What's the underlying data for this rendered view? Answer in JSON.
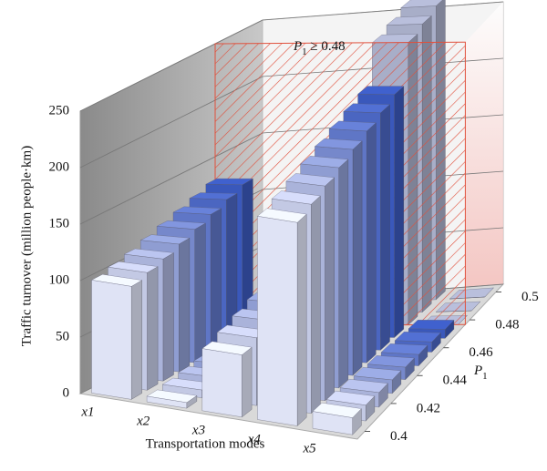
{
  "chart_data": {
    "type": "bar3d",
    "annotation": [
      "P",
      "1",
      " ≥ 0.48"
    ],
    "ylabel": "Traffic turnover (million people·km)",
    "xlabel": "Transportation modes",
    "zlabel": [
      "P",
      "1"
    ],
    "categories": [
      "x1",
      "x2",
      "x3",
      "x4",
      "x5"
    ],
    "z": [
      0.4,
      0.41,
      0.42,
      0.43,
      0.44,
      0.45,
      0.46,
      0.47,
      0.48,
      0.49,
      0.5
    ],
    "colors": [
      "#dfe3f5",
      "#c3c9e4",
      "#aab3da",
      "#8f9dd2",
      "#7688cb",
      "#5f76c6",
      "#4b66c1",
      "#3a58bb",
      "#a8aec8",
      "#a8aec8",
      "#a8aec8"
    ],
    "values": [
      [
        100,
        104,
        108,
        113,
        118,
        123,
        128,
        133,
        0,
        0,
        0
      ],
      [
        5,
        7,
        9,
        11,
        13,
        15,
        17,
        19,
        0,
        0,
        0
      ],
      [
        55,
        60,
        65,
        70,
        75,
        80,
        85,
        90,
        0,
        0,
        0
      ],
      [
        180,
        185,
        190,
        195,
        200,
        205,
        210,
        215,
        250,
        255,
        260
      ],
      [
        15,
        14,
        13,
        12,
        11,
        10,
        9,
        8,
        0,
        0,
        0
      ]
    ],
    "ylim": [
      0,
      250
    ],
    "yticks": [
      0,
      50,
      100,
      150,
      200,
      250
    ],
    "zlim": [
      0.4,
      0.5
    ],
    "zticks": [
      0.4,
      0.42,
      0.44,
      0.46,
      0.48,
      0.5
    ],
    "highlight_zlim": [
      0.48,
      0.5
    ],
    "highlight_color": "#e0503c",
    "grid": true
  }
}
